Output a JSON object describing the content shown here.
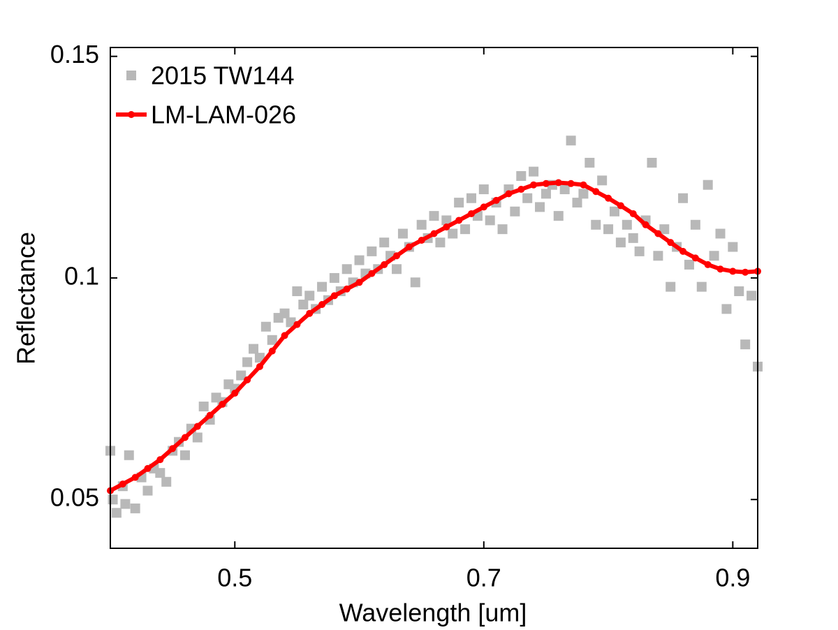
{
  "chart_data": {
    "type": "scatter",
    "xlabel": "Wavelength [um]",
    "ylabel": "Reflectance",
    "xlim": [
      0.4,
      0.92
    ],
    "xticks": [
      0.5,
      0.7,
      0.9
    ],
    "ylim": [
      0.039,
      0.152
    ],
    "yticks": [
      0.05,
      0.1,
      0.15
    ],
    "legend": "upper left",
    "series": [
      {
        "name": "2015 TW144",
        "color": "#b8b8b8",
        "style": "markers",
        "x": [
          0.4,
          0.402,
          0.405,
          0.41,
          0.412,
          0.415,
          0.42,
          0.425,
          0.43,
          0.435,
          0.44,
          0.445,
          0.45,
          0.455,
          0.46,
          0.465,
          0.47,
          0.475,
          0.48,
          0.485,
          0.49,
          0.495,
          0.5,
          0.505,
          0.51,
          0.515,
          0.52,
          0.525,
          0.53,
          0.535,
          0.54,
          0.545,
          0.55,
          0.555,
          0.56,
          0.565,
          0.57,
          0.575,
          0.58,
          0.585,
          0.59,
          0.595,
          0.6,
          0.605,
          0.61,
          0.615,
          0.62,
          0.625,
          0.63,
          0.635,
          0.64,
          0.645,
          0.65,
          0.655,
          0.66,
          0.665,
          0.67,
          0.675,
          0.68,
          0.685,
          0.69,
          0.695,
          0.7,
          0.705,
          0.71,
          0.715,
          0.72,
          0.725,
          0.73,
          0.735,
          0.74,
          0.745,
          0.75,
          0.755,
          0.76,
          0.765,
          0.77,
          0.775,
          0.78,
          0.785,
          0.79,
          0.795,
          0.8,
          0.805,
          0.81,
          0.815,
          0.82,
          0.825,
          0.83,
          0.835,
          0.84,
          0.845,
          0.85,
          0.855,
          0.86,
          0.865,
          0.87,
          0.875,
          0.88,
          0.885,
          0.89,
          0.895,
          0.9,
          0.905,
          0.91,
          0.915,
          0.92
        ],
        "values": [
          0.061,
          0.05,
          0.047,
          0.053,
          0.049,
          0.06,
          0.048,
          0.055,
          0.052,
          0.057,
          0.056,
          0.054,
          0.061,
          0.063,
          0.06,
          0.066,
          0.064,
          0.071,
          0.068,
          0.073,
          0.072,
          0.076,
          0.075,
          0.078,
          0.081,
          0.084,
          0.082,
          0.089,
          0.086,
          0.091,
          0.092,
          0.09,
          0.097,
          0.094,
          0.096,
          0.093,
          0.098,
          0.095,
          0.1,
          0.097,
          0.102,
          0.099,
          0.104,
          0.101,
          0.106,
          0.102,
          0.108,
          0.105,
          0.102,
          0.11,
          0.107,
          0.099,
          0.112,
          0.109,
          0.114,
          0.108,
          0.113,
          0.11,
          0.117,
          0.111,
          0.118,
          0.114,
          0.12,
          0.113,
          0.117,
          0.111,
          0.12,
          0.115,
          0.123,
          0.118,
          0.124,
          0.116,
          0.119,
          0.121,
          0.114,
          0.12,
          0.131,
          0.117,
          0.119,
          0.126,
          0.112,
          0.122,
          0.111,
          0.115,
          0.108,
          0.112,
          0.109,
          0.106,
          0.113,
          0.126,
          0.105,
          0.111,
          0.098,
          0.107,
          0.118,
          0.103,
          0.112,
          0.098,
          0.121,
          0.105,
          0.11,
          0.093,
          0.107,
          0.097,
          0.085,
          0.096,
          0.08
        ]
      },
      {
        "name": "LM-LAM-026",
        "color": "#ff0000",
        "style": "lines+markers",
        "x": [
          0.4,
          0.41,
          0.42,
          0.43,
          0.44,
          0.45,
          0.46,
          0.47,
          0.48,
          0.49,
          0.5,
          0.51,
          0.52,
          0.53,
          0.54,
          0.55,
          0.56,
          0.57,
          0.58,
          0.59,
          0.6,
          0.61,
          0.62,
          0.63,
          0.64,
          0.65,
          0.66,
          0.67,
          0.68,
          0.69,
          0.7,
          0.71,
          0.72,
          0.73,
          0.74,
          0.75,
          0.76,
          0.77,
          0.78,
          0.79,
          0.8,
          0.81,
          0.82,
          0.83,
          0.84,
          0.85,
          0.86,
          0.87,
          0.88,
          0.89,
          0.9,
          0.91,
          0.92
        ],
        "values": [
          0.052,
          0.0535,
          0.055,
          0.057,
          0.059,
          0.0615,
          0.064,
          0.0665,
          0.069,
          0.0715,
          0.074,
          0.077,
          0.08,
          0.0835,
          0.087,
          0.0895,
          0.092,
          0.094,
          0.096,
          0.0975,
          0.099,
          0.101,
          0.103,
          0.105,
          0.107,
          0.1085,
          0.11,
          0.1115,
          0.113,
          0.1145,
          0.116,
          0.1175,
          0.119,
          0.12,
          0.121,
          0.1213,
          0.1215,
          0.1213,
          0.121,
          0.1195,
          0.118,
          0.1163,
          0.1145,
          0.112,
          0.11,
          0.108,
          0.106,
          0.1045,
          0.103,
          0.102,
          0.1015,
          0.1013,
          0.1015
        ]
      }
    ]
  }
}
